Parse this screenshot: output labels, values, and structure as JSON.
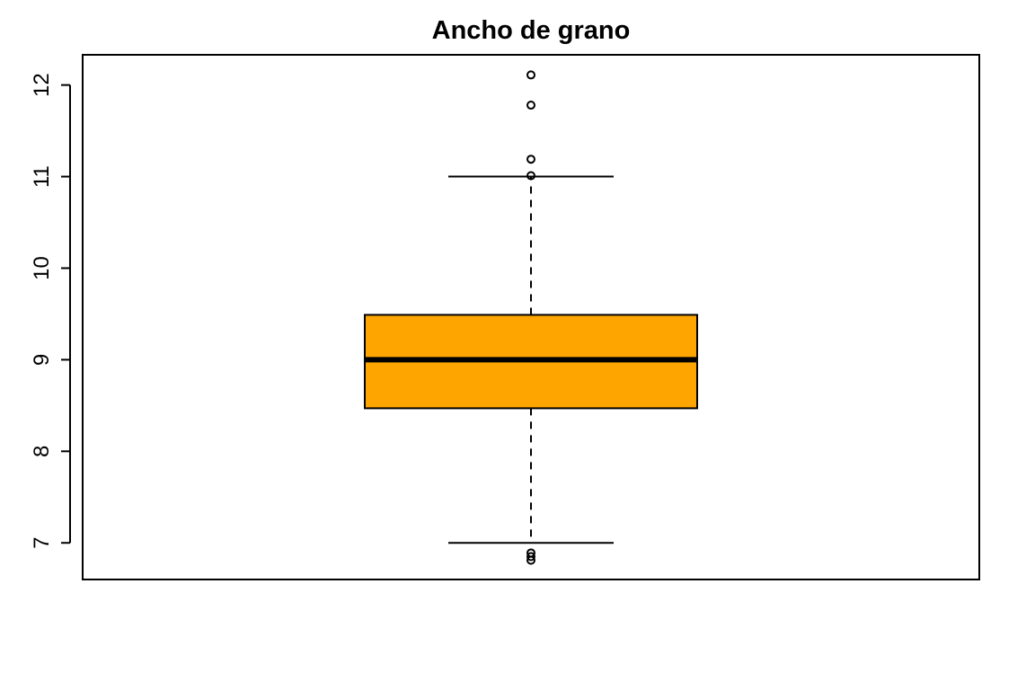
{
  "chart_data": {
    "type": "box",
    "title": "Ancho de grano",
    "xlabel": "",
    "ylabel": "",
    "ylim": [
      6.6,
      12.33
    ],
    "yticks": [
      7,
      8,
      9,
      10,
      11,
      12
    ],
    "ytick_labels": [
      "7",
      "8",
      "9",
      "10",
      "11",
      "12"
    ],
    "box": {
      "q1": 8.47,
      "median": 9.0,
      "q3": 9.49,
      "whisker_low": 7.0,
      "whisker_high": 11.0
    },
    "outliers": [
      12.11,
      11.78,
      11.19,
      11.01,
      6.89,
      6.85,
      6.81
    ],
    "colors": {
      "box_fill": "#FFA500",
      "stroke": "#000000"
    },
    "grid": false,
    "legend": "none"
  }
}
